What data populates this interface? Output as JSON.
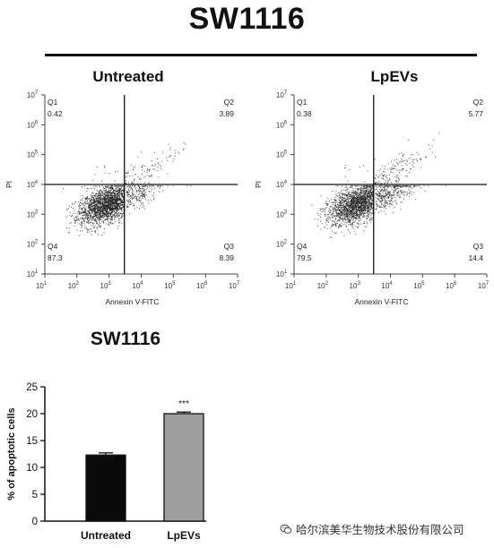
{
  "title": "SW1116",
  "chart_data": [
    {
      "type": "scatter",
      "title": "Untreated",
      "xlabel": "Annexin V-FITC",
      "ylabel": "PI",
      "xscale": "log",
      "yscale": "log",
      "xlim": [
        10,
        10000000
      ],
      "ylim": [
        10,
        10000000
      ],
      "gate": {
        "x": 3000,
        "y": 10000
      },
      "quadrants": [
        {
          "name": "Q1",
          "value": "0.42"
        },
        {
          "name": "Q2",
          "value": "3.89"
        },
        {
          "name": "Q3",
          "value": "8.39"
        },
        {
          "name": "Q4",
          "value": "87.3"
        }
      ],
      "point_color": "#222222"
    },
    {
      "type": "scatter",
      "title": "LpEVs",
      "xlabel": "Annexin V-FITC",
      "ylabel": "PI",
      "xscale": "log",
      "yscale": "log",
      "xlim": [
        10,
        10000000
      ],
      "ylim": [
        10,
        10000000
      ],
      "gate": {
        "x": 3000,
        "y": 10000
      },
      "quadrants": [
        {
          "name": "Q1",
          "value": "0.38"
        },
        {
          "name": "Q2",
          "value": "5.77"
        },
        {
          "name": "Q3",
          "value": "14.4"
        },
        {
          "name": "Q4",
          "value": "79.5"
        }
      ],
      "point_color": "#222222"
    },
    {
      "type": "bar",
      "title": "SW1116",
      "categories": [
        "Untreated",
        "LpEVs"
      ],
      "values": [
        12.3,
        20.0
      ],
      "errors": [
        0.4,
        0.3
      ],
      "ylabel": "% of apoptotic cells",
      "ylim": [
        0,
        25
      ],
      "yticks": [
        "0",
        "5",
        "10",
        "15",
        "20",
        "25"
      ],
      "annotations": [
        "",
        "***"
      ],
      "colors": [
        "#0a0a0a",
        "#9e9e9e"
      ]
    }
  ],
  "watermark": {
    "text": "哈尔滨美华生物技术股份有限公司",
    "icon": "wechat-icon"
  }
}
